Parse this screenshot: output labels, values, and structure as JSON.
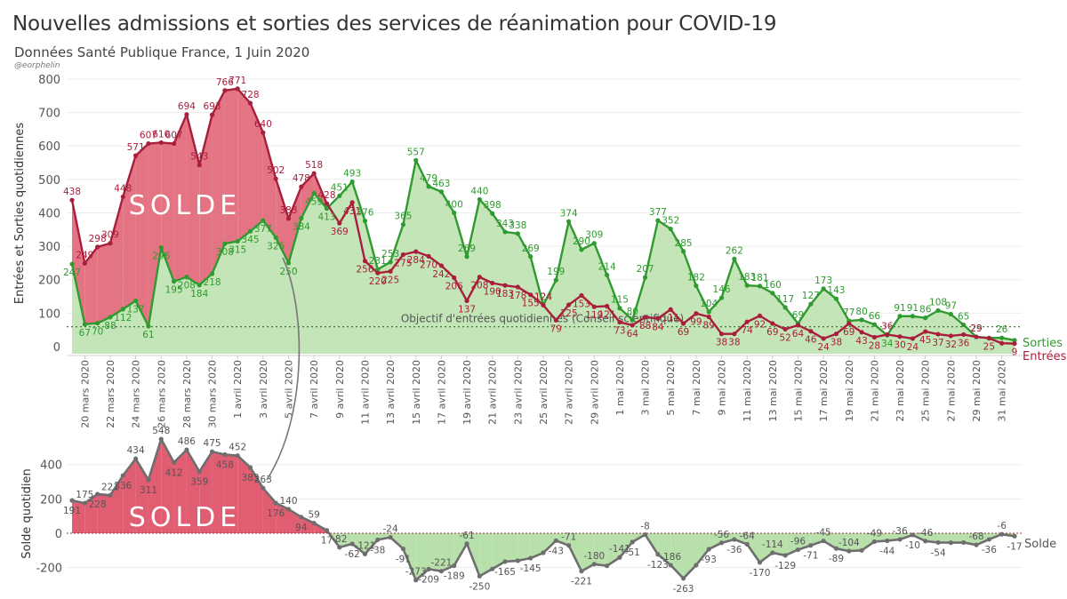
{
  "header": {
    "title": "Nouvelles admissions et sorties des services de réanimation pour COVID-19",
    "subtitle": "Données Santé Publique France, 1 Juin 2020",
    "credit": "@eorphelin"
  },
  "colors": {
    "entrees": "#a91e3c",
    "entrees_fill": "#e47483",
    "sorties": "#2f9a2f",
    "sorties_fill": "#b8e0aa",
    "solde_line": "#6e6e6e",
    "solde_pos_fill": "#e05d72",
    "solde_neg_fill": "#b8e0aa"
  },
  "chart_data": [
    {
      "type": "line",
      "ylabel": "Entrées et Sorties quotidiennes",
      "ylim": [
        0,
        800
      ],
      "yticks": [
        0,
        100,
        200,
        300,
        400,
        500,
        600,
        700,
        800
      ],
      "x": [
        "19 mars 2020",
        "20 mars 2020",
        "21 mars 2020",
        "22 mars 2020",
        "23 mars 2020",
        "24 mars 2020",
        "25 mars 2020",
        "26 mars 2020",
        "27 mars 2020",
        "28 mars 2020",
        "29 mars 2020",
        "30 mars 2020",
        "31 mars 2020",
        "1 avril 2020",
        "2 avril 2020",
        "3 avril 2020",
        "4 avril 2020",
        "5 avril 2020",
        "6 avril 2020",
        "7 avril 2020",
        "8 avril 2020",
        "9 avril 2020",
        "10 avril 2020",
        "11 avril 2020",
        "12 avril 2020",
        "13 avril 2020",
        "14 avril 2020",
        "15 avril 2020",
        "16 avril 2020",
        "17 avril 2020",
        "18 avril 2020",
        "19 avril 2020",
        "20 avril 2020",
        "21 avril 2020",
        "22 avril 2020",
        "23 avril 2020",
        "24 avril 2020",
        "25 avril 2020",
        "26 avril 2020",
        "27 avril 2020",
        "28 avril 2020",
        "29 avril 2020",
        "30 avril 2020",
        "1 mai 2020",
        "2 mai 2020",
        "3 mai 2020",
        "4 mai 2020",
        "5 mai 2020",
        "6 mai 2020",
        "7 mai 2020",
        "8 mai 2020",
        "9 mai 2020",
        "10 mai 2020",
        "11 mai 2020",
        "12 mai 2020",
        "13 mai 2020",
        "14 mai 2020",
        "15 mai 2020",
        "16 mai 2020",
        "17 mai 2020",
        "18 mai 2020",
        "19 mai 2020",
        "20 mai 2020",
        "21 mai 2020",
        "22 mai 2020",
        "23 mai 2020",
        "24 mai 2020",
        "25 mai 2020",
        "26 mai 2020",
        "27 mai 2020",
        "28 mai 2020",
        "29 mai 2020",
        "30 mai 2020",
        "31 mai 2020",
        "1 juin 2020"
      ],
      "xtick_labels": [
        "20 mars 2020",
        "22 mars 2020",
        "24 mars 2020",
        "26 mars 2020",
        "28 mars 2020",
        "30 mars 2020",
        "1 avril 2020",
        "3 avril 2020",
        "5 avril 2020",
        "7 avril 2020",
        "9 avril 2020",
        "11 avril 2020",
        "13 avril 2020",
        "15 avril 2020",
        "17 avril 2020",
        "19 avril 2020",
        "21 avril 2020",
        "23 avril 2020",
        "25 avril 2020",
        "27 avril 2020",
        "29 avril 2020",
        "1 mai 2020",
        "3 mai 2020",
        "5 mai 2020",
        "7 mai 2020",
        "9 mai 2020",
        "11 mai 2020",
        "13 mai 2020",
        "15 mai 2020",
        "17 mai 2020",
        "19 mai 2020",
        "21 mai 2020",
        "23 mai 2020",
        "25 mai 2020",
        "27 mai 2020",
        "29 mai 2020",
        "31 mai 2020"
      ],
      "series": [
        {
          "name": "Entrées",
          "values": [
            438,
            249,
            298,
            309,
            448,
            571,
            607,
            610,
            607,
            694,
            543,
            693,
            766,
            771,
            728,
            640,
            502,
            383,
            478,
            518,
            428,
            369,
            431,
            256,
            220,
            225,
            275,
            284,
            270,
            242,
            206,
            137,
            208,
            190,
            183,
            178,
            155,
            124,
            79,
            125,
            153,
            119,
            121,
            73,
            64,
            88,
            84,
            111,
            69,
            99,
            89,
            38,
            38,
            74,
            92,
            69,
            52,
            64,
            46,
            24,
            38,
            69,
            43,
            28,
            36,
            30,
            24,
            45,
            37,
            32,
            36,
            29,
            25,
            10,
            9
          ]
        },
        {
          "name": "Sorties",
          "values": [
            247,
            67,
            70,
            88,
            112,
            137,
            61,
            296,
            195,
            208,
            184,
            218,
            308,
            315,
            345,
            377,
            326,
            250,
            384,
            459,
            413,
            451,
            493,
            376,
            231,
            253,
            365,
            557,
            479,
            463,
            400,
            269,
            440,
            398,
            343,
            338,
            269,
            124,
            199,
            374,
            290,
            309,
            214,
            115,
            80,
            207,
            377,
            352,
            285,
            182,
            104,
            146,
            262,
            183,
            181,
            160,
            117,
            69,
            127,
            173,
            143,
            77,
            80,
            66,
            34,
            91,
            91,
            86,
            108,
            97,
            65,
            29,
            26,
            26,
            19
          ]
        }
      ],
      "annotations": {
        "solde_area_label": "SOLDE",
        "objective_label": "Objectif d'entrées quotidiennes (Conseil scientifique)",
        "objective_value": 30,
        "end_label_sorties": "Sorties",
        "end_label_entrees": "Entrées"
      },
      "point_labels": {
        "entrees": [
          "438",
          "249",
          "298",
          "309",
          "448",
          "571",
          "607",
          "610",
          "607",
          "694",
          "543",
          "693",
          "766",
          "771",
          "728",
          "640",
          "502",
          "383",
          "478",
          "518",
          "428",
          "369",
          "431",
          "256",
          "220",
          "225",
          "275",
          "284",
          "270",
          "242",
          "206",
          "137",
          "208",
          "190",
          "183",
          "178",
          "155",
          "124",
          "79",
          "125",
          "153",
          "119",
          "121",
          "73",
          "64",
          "88",
          "84",
          "111",
          "69",
          "99",
          "89",
          "38",
          "38",
          "74",
          "92",
          "69",
          "52",
          "64",
          "46",
          "24",
          "38",
          "69",
          "43",
          "28",
          "36",
          "30",
          "24",
          "45",
          "37",
          "32",
          "36",
          "29",
          "25",
          "",
          "9"
        ],
        "sorties": [
          "247",
          "67",
          "70",
          "88",
          "112",
          "137",
          "61",
          "296",
          "195",
          "208",
          "184",
          "218",
          "308",
          "315",
          "345",
          "377",
          "326",
          "250",
          "384",
          "459",
          "413",
          "451",
          "493",
          "376",
          "231",
          "253",
          "365",
          "557",
          "479",
          "463",
          "400",
          "269",
          "440",
          "398",
          "343",
          "338",
          "269",
          "124",
          "199",
          "374",
          "290",
          "309",
          "214",
          "115",
          "80",
          "207",
          "377",
          "352",
          "285",
          "182",
          "104",
          "146",
          "262",
          "183",
          "181",
          "160",
          "117",
          "69",
          "127",
          "173",
          "143",
          "77",
          "80",
          "66",
          "34",
          "91",
          "91",
          "86",
          "108",
          "97",
          "65",
          "29",
          "",
          "26",
          ""
        ]
      }
    },
    {
      "type": "area",
      "ylabel": "Solde quotidien",
      "ylim": [
        -300,
        600
      ],
      "yticks": [
        -200,
        0,
        200,
        400
      ],
      "series": [
        {
          "name": "Solde",
          "values": [
            191,
            175,
            228,
            221,
            336,
            434,
            311,
            548,
            412,
            486,
            359,
            475,
            458,
            452,
            383,
            263,
            176,
            140,
            94,
            59,
            17,
            -82,
            -62,
            -121,
            -38,
            -24,
            -91,
            -273,
            -209,
            -221,
            -189,
            -61,
            -250,
            -208,
            -165,
            -160,
            -145,
            -114,
            -43,
            -71,
            -221,
            -180,
            -190,
            -141,
            -51,
            -8,
            -123,
            -186,
            -263,
            -186,
            -93,
            -56,
            -36,
            -64,
            -170,
            -114,
            -129,
            -96,
            -71,
            -45,
            -89,
            -104,
            -100,
            -49,
            -44,
            -36,
            -10,
            -46,
            -54,
            -55,
            -54,
            -68,
            -36,
            -6,
            -17
          ]
        }
      ],
      "point_labels": [
        "191",
        "175",
        "228",
        "221",
        "336",
        "434",
        "311",
        "548",
        "412",
        "486",
        "359",
        "475",
        "458",
        "452",
        "383",
        "263",
        "176",
        "140",
        "94",
        "59",
        "17",
        "-82",
        "-62",
        "-121",
        "-38",
        "-24",
        "-91",
        "-273",
        "-209",
        "-221",
        "-189",
        "-61",
        "-250",
        "",
        "-165",
        "",
        "-145",
        "",
        "-43",
        "-71",
        "-221",
        "-180",
        "",
        "-141",
        "-51",
        "-8",
        "-123",
        "-186",
        "-263",
        "",
        "-93",
        "-56",
        "-36",
        "-64",
        "-170",
        "-114",
        "-129",
        "-96",
        "-71",
        "-45",
        "-89",
        "-104",
        "",
        "-49",
        "-44",
        "-36",
        "-10",
        "-46",
        "-54",
        "",
        "",
        "-68",
        "-36",
        "-6",
        "-17"
      ],
      "annotations": {
        "solde_area_label": "SOLDE",
        "end_label": "Solde"
      }
    }
  ]
}
